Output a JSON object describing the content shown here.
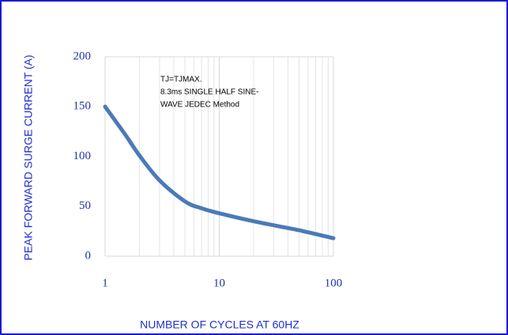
{
  "chart_data": {
    "type": "line",
    "xlabel": "NUMBER OF CYCLES AT 60HZ",
    "ylabel": "PEAK FORWARD SURGE CURRENT (A)",
    "annotation": [
      "TJ=TJMAX.",
      "8.3ms SINGLE HALF SINE-",
      "WAVE  JEDEC Method"
    ],
    "x": [
      1,
      1.5,
      2,
      3,
      5,
      7,
      10,
      20,
      50,
      100
    ],
    "series": [
      {
        "color": "#4a7ab8",
        "values": [
          150,
          122,
          101,
          76,
          55,
          48,
          43,
          35,
          26,
          18
        ]
      }
    ],
    "xscale": "log",
    "xlim": [
      1,
      100
    ],
    "xticks": [
      1,
      10,
      100
    ],
    "xgrid": [
      2,
      3,
      4,
      5,
      6,
      7,
      8,
      9,
      20,
      30,
      40,
      50,
      60,
      70,
      80,
      90
    ],
    "ylim": [
      0,
      200
    ],
    "yticks": [
      0,
      50,
      100,
      150,
      200
    ]
  }
}
